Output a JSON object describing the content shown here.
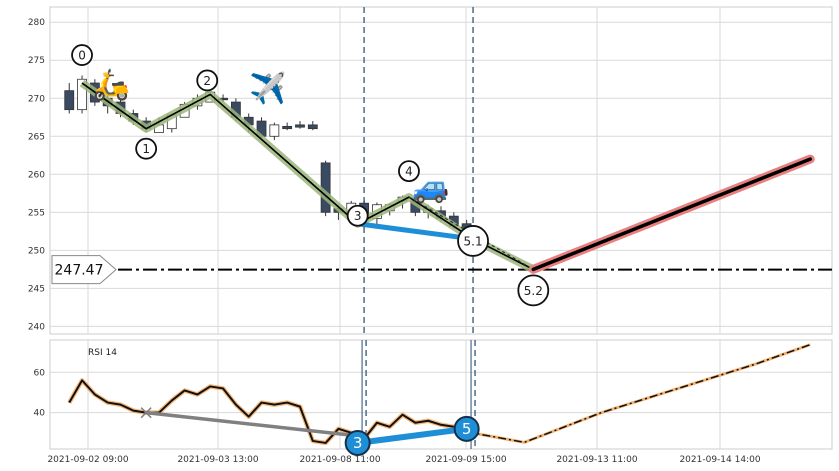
{
  "chart_data": [
    {
      "type": "candlestick",
      "ylim": [
        239,
        282
      ],
      "yticks": [
        240,
        245,
        250,
        255,
        260,
        265,
        270,
        275,
        280
      ],
      "grid": true,
      "x_labels": [
        "2021-09-02 09:00",
        "2021-09-03 13:00",
        "2021-09-08 11:00",
        "2021-09-09 15:00",
        "2021-09-13 11:00",
        "2021-09-14 14:00"
      ],
      "candles": [
        {
          "o": 271,
          "h": 272,
          "l": 268,
          "c": 268.5
        },
        {
          "o": 268.5,
          "h": 273,
          "l": 268,
          "c": 272.5
        },
        {
          "o": 272,
          "h": 272.5,
          "l": 269,
          "c": 269.5
        },
        {
          "o": 270,
          "h": 270.5,
          "l": 268,
          "c": 269
        },
        {
          "o": 269.5,
          "h": 270,
          "l": 267.5,
          "c": 268
        },
        {
          "o": 268,
          "h": 268.5,
          "l": 266.5,
          "c": 267
        },
        {
          "o": 267,
          "h": 267.5,
          "l": 265.5,
          "c": 266
        },
        {
          "o": 265.5,
          "h": 267.5,
          "l": 265.5,
          "c": 266.5
        },
        {
          "o": 266,
          "h": 268,
          "l": 265.5,
          "c": 267.8
        },
        {
          "o": 267.5,
          "h": 269.5,
          "l": 267.5,
          "c": 269.2
        },
        {
          "o": 269,
          "h": 270.5,
          "l": 268.5,
          "c": 270
        },
        {
          "o": 269.5,
          "h": 271,
          "l": 269.5,
          "c": 270.8
        },
        {
          "o": 270,
          "h": 270.5,
          "l": 269.5,
          "c": 269.8
        },
        {
          "o": 269.5,
          "h": 270,
          "l": 267,
          "c": 267.5
        },
        {
          "o": 267.5,
          "h": 268,
          "l": 265.5,
          "c": 266.5
        },
        {
          "o": 267,
          "h": 267.5,
          "l": 264.5,
          "c": 265
        },
        {
          "o": 265,
          "h": 266.8,
          "l": 264.5,
          "c": 266.5
        },
        {
          "o": 266.3,
          "h": 266.8,
          "l": 265.8,
          "c": 266
        },
        {
          "o": 266.5,
          "h": 267,
          "l": 266,
          "c": 266.2
        },
        {
          "o": 266.5,
          "h": 267,
          "l": 265.8,
          "c": 266
        },
        {
          "o": 261.5,
          "h": 261.8,
          "l": 254.5,
          "c": 255
        },
        {
          "o": 255.5,
          "h": 256,
          "l": 254,
          "c": 255
        },
        {
          "o": 254.5,
          "h": 256.5,
          "l": 254,
          "c": 256.2
        },
        {
          "o": 256.2,
          "h": 256.5,
          "l": 253,
          "c": 254
        },
        {
          "o": 254.2,
          "h": 256.3,
          "l": 253.2,
          "c": 256
        },
        {
          "o": 255.2,
          "h": 256.2,
          "l": 254.6,
          "c": 256
        },
        {
          "o": 256.5,
          "h": 257.2,
          "l": 255.5,
          "c": 257
        },
        {
          "o": 256.5,
          "h": 257,
          "l": 254.5,
          "c": 255
        },
        {
          "o": 255,
          "h": 256,
          "l": 254.2,
          "c": 255.5
        },
        {
          "o": 255.2,
          "h": 255.8,
          "l": 253.8,
          "c": 254.2
        },
        {
          "o": 254.5,
          "h": 255,
          "l": 252.8,
          "c": 253.2
        },
        {
          "o": 253.5,
          "h": 254,
          "l": 252,
          "c": 252.5
        }
      ],
      "wave_labels": [
        {
          "label": "0",
          "x": 1,
          "y": 272.0
        },
        {
          "label": "1",
          "x": 6,
          "y": 266.0
        },
        {
          "label": "2",
          "x": 11,
          "y": 270.5
        },
        {
          "label": "3",
          "x": 22.5,
          "y": 253.5
        },
        {
          "label": "4",
          "x": 26.5,
          "y": 257.0
        },
        {
          "label": "5.1",
          "x": 31.5,
          "y": 251.5
        },
        {
          "label": "5.2",
          "x": 36.2,
          "y": 247.5
        }
      ],
      "price_level": {
        "value": 247.47,
        "label": "247.47"
      },
      "projection": {
        "from": [
          36.2,
          247.5
        ],
        "to": [
          57.8,
          262
        ]
      },
      "blue_segment": {
        "from": [
          22.5,
          253.5
        ],
        "to": [
          31.5,
          251.5
        ]
      },
      "vlines_x": [
        23,
        31.5
      ]
    },
    {
      "type": "line",
      "title": "RSI 14",
      "ylim": [
        22,
        76
      ],
      "yticks": [
        40,
        60
      ],
      "values": [
        45,
        56,
        49,
        45,
        44,
        41,
        40,
        40,
        46,
        51,
        49,
        53,
        52,
        44,
        38,
        45,
        44,
        45,
        43,
        26,
        25,
        32,
        30,
        27,
        35,
        33,
        39,
        35,
        36,
        34,
        33
      ],
      "projection": [
        [
          31,
          30.5
        ],
        [
          35.5,
          25.3
        ],
        [
          41.5,
          40
        ],
        [
          47.5,
          52
        ],
        [
          53.5,
          64
        ],
        [
          57.8,
          73.7
        ]
      ],
      "grey_segment": {
        "from": [
          6,
          40
        ],
        "to": [
          22.5,
          28.5
        ]
      },
      "blue_segment": {
        "from": [
          22.5,
          25
        ],
        "to": [
          31,
          32
        ]
      },
      "badges": [
        {
          "label": "3",
          "x": 22.5,
          "y": 25
        },
        {
          "label": "5",
          "x": 31,
          "y": 32
        }
      ]
    }
  ],
  "emoji": {
    "scooter": "🛵",
    "plane": "✈️",
    "car": "🚙"
  },
  "colors": {
    "candle_down": "#3b4a63",
    "candle_up": "#ffffff",
    "wave_halo": "#9bb57a",
    "projection_halo": "#e88080",
    "blue": "#1e8fd6",
    "grey": "#808080",
    "vline": "#4a6b8a",
    "orange": "#f0a050"
  }
}
